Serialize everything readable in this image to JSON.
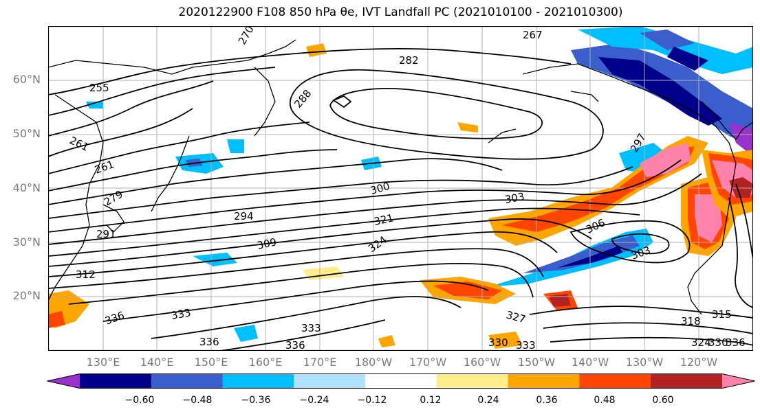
{
  "title": "2020122900 F108 850 hPa θe, IVT Landfall PC (2021010100 - 2021010300)",
  "lat_labels": [
    "60°N",
    "50°N",
    "40°N",
    "30°N",
    "20°N"
  ],
  "lon_labels": [
    "130°E",
    "140°E",
    "150°E",
    "160°E",
    "170°E",
    "180°W",
    "170°W",
    "160°W",
    "150°W",
    "140°W",
    "130°W",
    "120°W"
  ],
  "contour_labels": [
    "270",
    "267",
    "282",
    "255",
    "288",
    "261",
    "261",
    "279",
    "300",
    "294",
    "291",
    "303",
    "297",
    "321",
    "306",
    "309",
    "324",
    "303",
    "312",
    "336",
    "333",
    "327",
    "318",
    "315",
    "333",
    "336",
    "336",
    "330",
    "333",
    "324",
    "330",
    "336"
  ],
  "colorbar": {
    "colors": [
      "#9932cc",
      "#00008b",
      "#3a5fcd",
      "#00bfff",
      "#b0e2ff",
      "#ffffff",
      "#ffec8b",
      "#ffa500",
      "#ff4500",
      "#b22222",
      "#ff82ab"
    ],
    "tick_labels": [
      "−0.60",
      "−0.48",
      "−0.36",
      "−0.24",
      "−0.12",
      "0.12",
      "0.24",
      "0.36",
      "0.48",
      "0.60"
    ]
  },
  "chart_data": {
    "type": "heatmap",
    "title": "2020122900 F108 850 hPa θe, IVT Landfall PC (2021010100 - 2021010300)",
    "field_contoured": "850 hPa θe",
    "field_shaded": "IVT Landfall PC",
    "lon_range": [
      120,
      250
    ],
    "lat_range": [
      10,
      70
    ],
    "contour_levels_labeled": [
      255,
      261,
      267,
      270,
      279,
      282,
      288,
      291,
      294,
      297,
      300,
      303,
      306,
      309,
      312,
      315,
      318,
      321,
      324,
      327,
      330,
      333,
      336
    ],
    "shading_levels": [
      -0.6,
      -0.48,
      -0.36,
      -0.24,
      -0.12,
      0.12,
      0.24,
      0.36,
      0.48,
      0.6
    ],
    "grid": true
  }
}
